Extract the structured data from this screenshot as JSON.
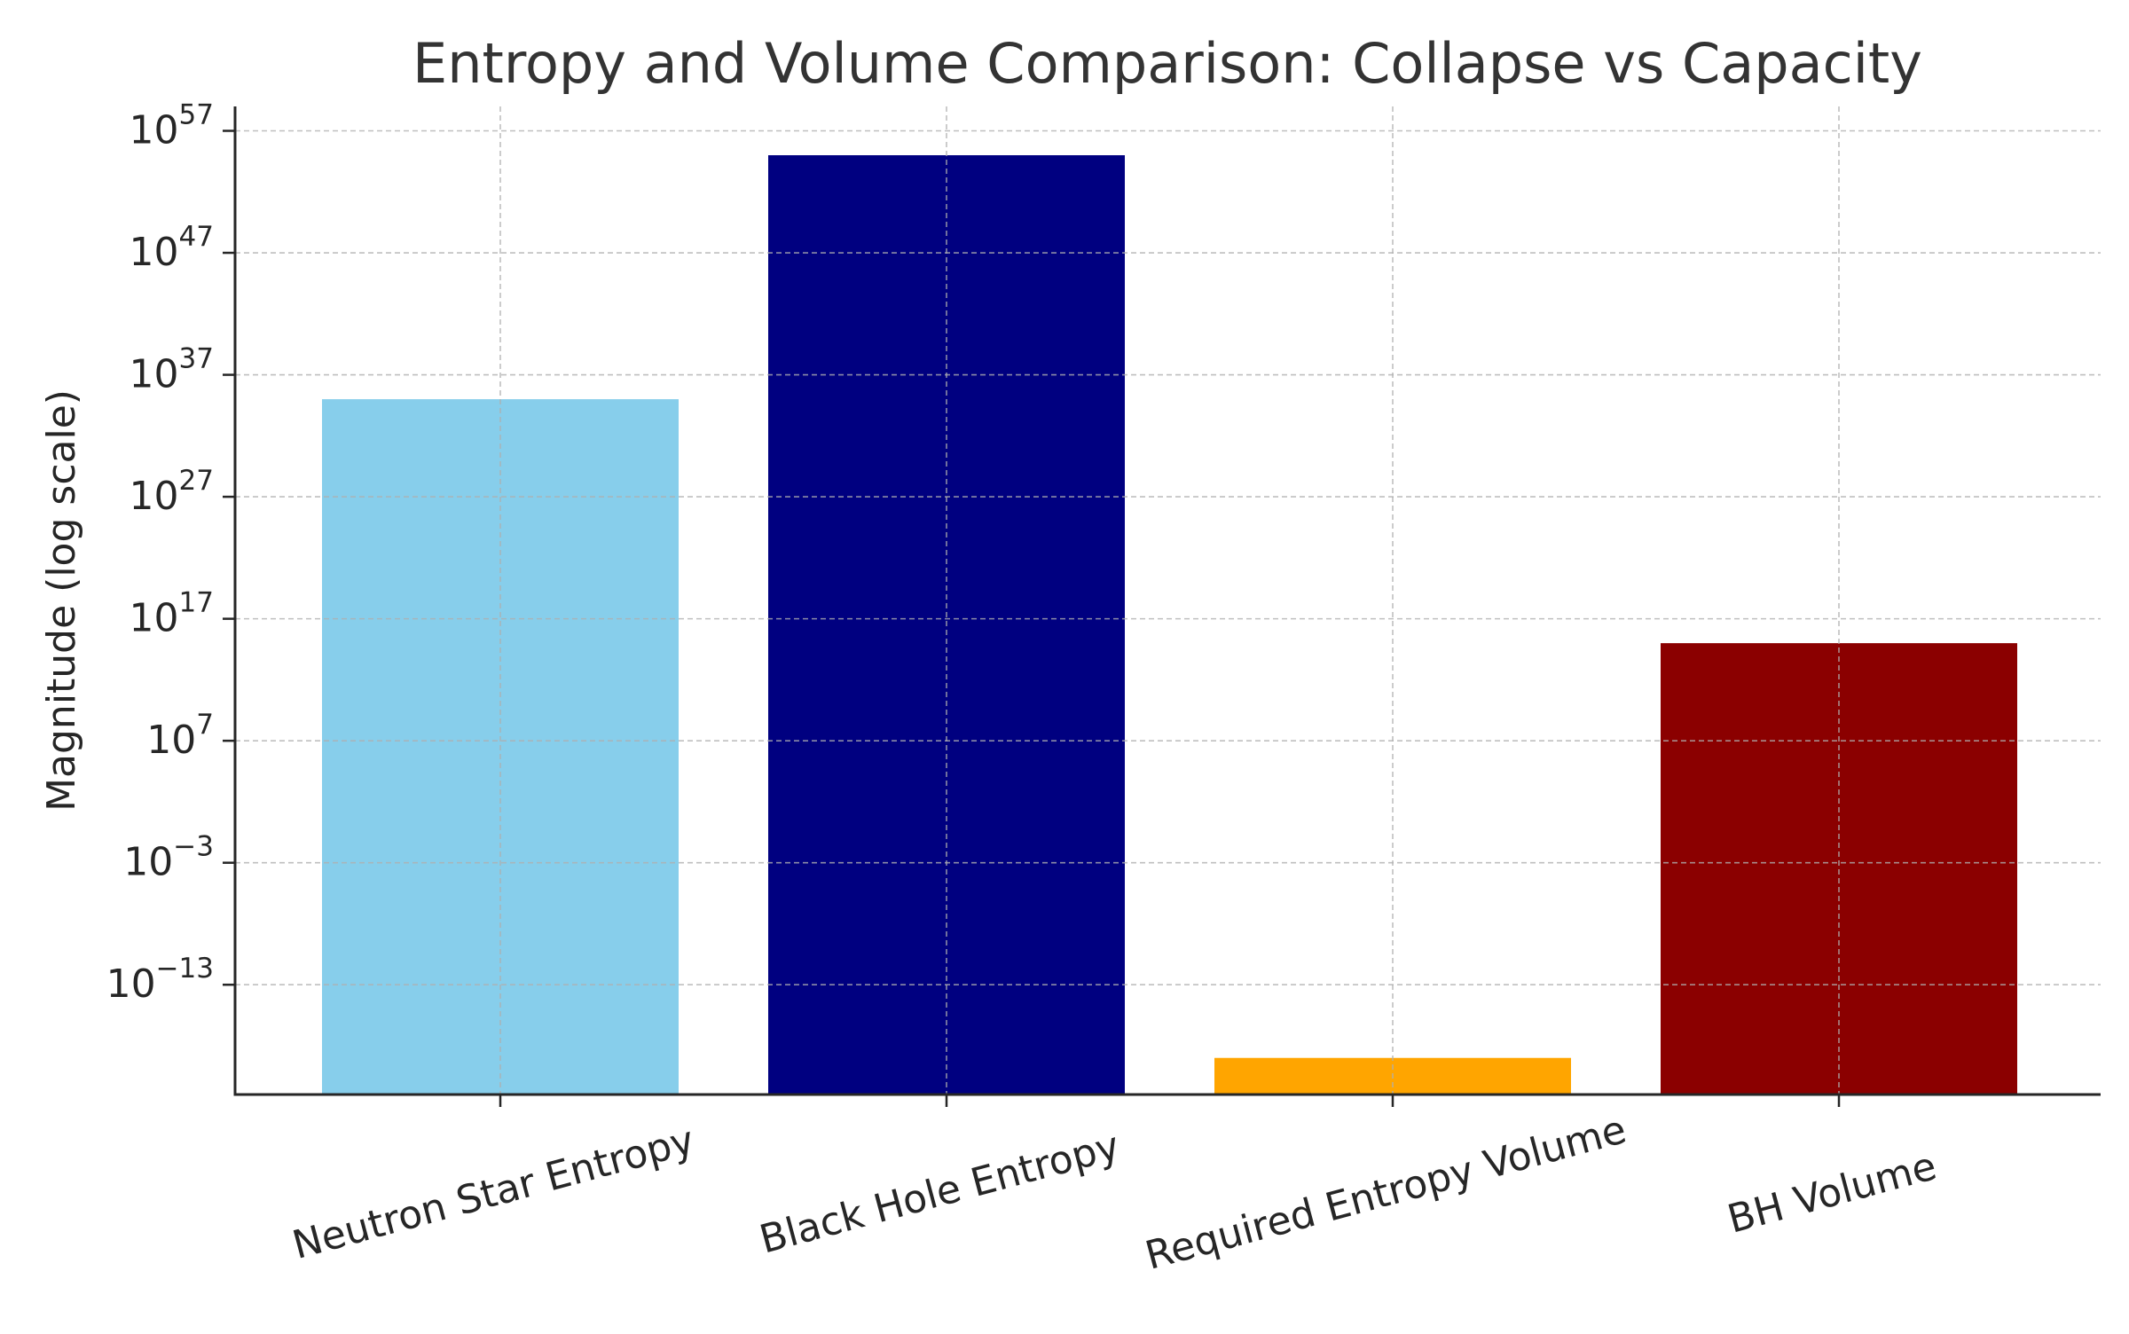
{
  "chart_data": {
    "type": "bar",
    "title": "Entropy and Volume Comparison: Collapse vs Capacity",
    "xlabel": "",
    "ylabel": "Magnitude (log scale)",
    "yscale": "log",
    "ylim": [
      1e-22,
      1e+59
    ],
    "yticks": [
      {
        "exp": "57",
        "value": 1e+57
      },
      {
        "exp": "47",
        "value": 1e+47
      },
      {
        "exp": "37",
        "value": 1e+37
      },
      {
        "exp": "27",
        "value": 1e+27
      },
      {
        "exp": "17",
        "value": 1e+17
      },
      {
        "exp": "7",
        "value": 10000000.0
      },
      {
        "exp": "−3",
        "value": 0.001
      },
      {
        "exp": "−13",
        "value": 1e-13
      }
    ],
    "ytick_base": "10",
    "categories": [
      "Neutron Star Entropy",
      "Black Hole Entropy",
      "Required Entropy Volume",
      "BH Volume"
    ],
    "values": [
      1e+35,
      1e+55,
      1e-19,
      1000000000000000.0
    ],
    "colors": [
      "#87ceeb",
      "#000080",
      "#ffa500",
      "#8b0000"
    ],
    "grid": true,
    "legend": "none"
  }
}
